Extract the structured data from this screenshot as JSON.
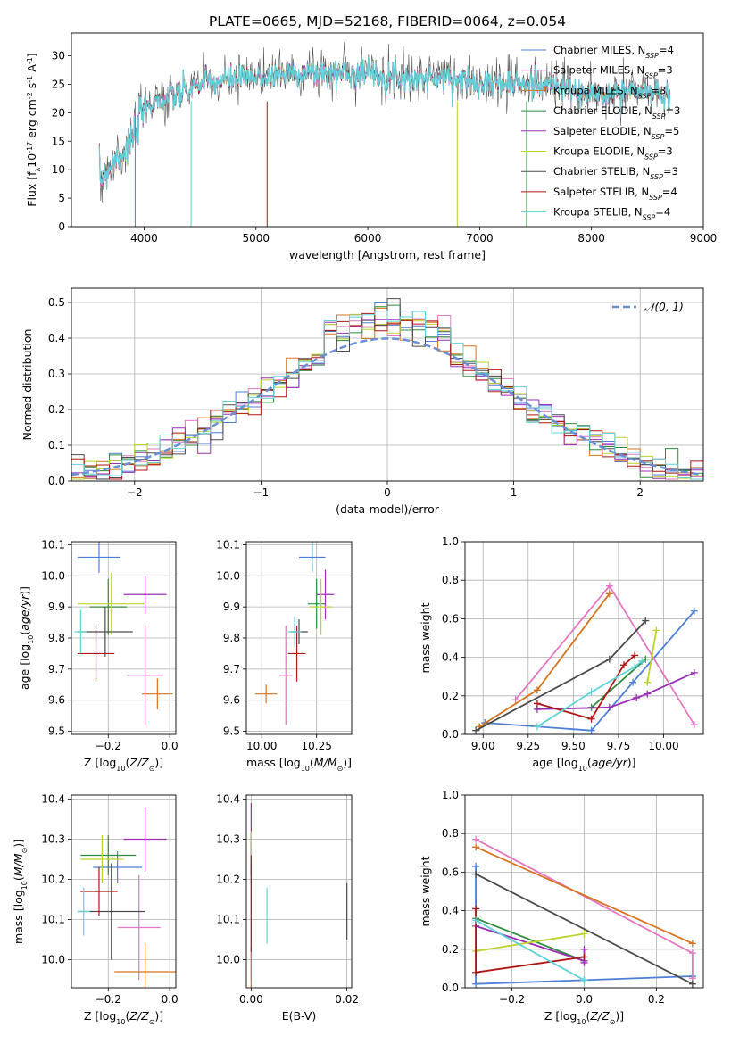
{
  "figure_title": "PLATE=0665, MJD=52168, FIBERID=0064, z=0.054",
  "models": [
    {
      "name": "Chabrier MILES, N$_{SSP}$=4",
      "color": "#4d7fd8"
    },
    {
      "name": "Salpeter MILES, N$_{SSP}$=3",
      "color": "#e377c2"
    },
    {
      "name": "Kroupa MILES, N$_{SSP}$=3",
      "color": "#d6731f"
    },
    {
      "name": "Chabrier ELODIE, N$_{SSP}$=3",
      "color": "#2e8b3e"
    },
    {
      "name": "Salpeter ELODIE, N$_{SSP}$=5",
      "color": "#9b2fb5"
    },
    {
      "name": "Kroupa ELODIE, N$_{SSP}$=3",
      "color": "#bcd22a"
    },
    {
      "name": "Chabrier STELIB, N$_{SSP}$=3",
      "color": "#4a4a4a"
    },
    {
      "name": "Salpeter STELIB, N$_{SSP}$=4",
      "color": "#b01515"
    },
    {
      "name": "Kroupa STELIB, N$_{SSP}$=4",
      "color": "#5fd3d8"
    }
  ],
  "legend_labels": [
    {
      "pre": "Chabrier MILES, N",
      "sub": "SSP",
      "post": "=4"
    },
    {
      "pre": "Salpeter MILES, N",
      "sub": "SSP",
      "post": "=3"
    },
    {
      "pre": "Kroupa MILES, N",
      "sub": "SSP",
      "post": "=3"
    },
    {
      "pre": "Chabrier ELODIE, N",
      "sub": "SSP",
      "post": "=3"
    },
    {
      "pre": "Salpeter ELODIE, N",
      "sub": "SSP",
      "post": "=5"
    },
    {
      "pre": "Kroupa ELODIE, N",
      "sub": "SSP",
      "post": "=3"
    },
    {
      "pre": "Chabrier STELIB, N",
      "sub": "SSP",
      "post": "=3"
    },
    {
      "pre": "Salpeter STELIB, N",
      "sub": "SSP",
      "post": "=4"
    },
    {
      "pre": "Kroupa STELIB, N",
      "sub": "SSP",
      "post": "=4"
    }
  ],
  "chart_data": [
    {
      "id": "spectrum",
      "type": "line",
      "title": "PLATE=0665, MJD=52168, FIBERID=0064, z=0.054",
      "xlabel": "wavelength [Angstrom, rest frame]",
      "ylabel": "Flux [f$_\\lambda$10$^{-17}$ erg cm$^{-2}$ s$^{-1}$ A$^{-1}$]",
      "xlim": [
        3350,
        9000
      ],
      "ylim": [
        0,
        34
      ],
      "xticks": [
        4000,
        5000,
        6000,
        7000,
        8000,
        9000
      ],
      "yticks": [
        0,
        5,
        10,
        15,
        20,
        25,
        30
      ],
      "legend": "upper right",
      "continuum": [
        [
          3600,
          8
        ],
        [
          3700,
          11
        ],
        [
          3800,
          13
        ],
        [
          3900,
          15
        ],
        [
          4000,
          21
        ],
        [
          4100,
          22
        ],
        [
          4300,
          23
        ],
        [
          4500,
          25
        ],
        [
          4800,
          26
        ],
        [
          5000,
          26
        ],
        [
          5300,
          27
        ],
        [
          5600,
          27
        ],
        [
          6000,
          27
        ],
        [
          6400,
          26
        ],
        [
          6800,
          26
        ],
        [
          7200,
          25
        ],
        [
          7600,
          25
        ],
        [
          8000,
          23
        ],
        [
          8400,
          24
        ],
        [
          8700,
          23
        ]
      ]
    },
    {
      "id": "residuals",
      "type": "histogram",
      "xlabel": "(data-model)/error",
      "ylabel": "Normed distribution",
      "xlim": [
        -2.5,
        2.5
      ],
      "ylim": [
        0,
        0.54
      ],
      "xticks": [
        -2,
        -1,
        0,
        1,
        2
      ],
      "yticks": [
        0.0,
        0.1,
        0.2,
        0.3,
        0.4,
        0.5
      ],
      "reference": {
        "label": "$\\mathcal{N}(0,1)$",
        "mean": 0,
        "sigma": 1,
        "color": "#6a8fd6"
      },
      "legend": "upper right"
    },
    {
      "id": "Z-age",
      "type": "scatter",
      "xlabel": "Z [log$_{10}$($Z/Z_\\odot$)]",
      "ylabel": "age  [log$_{10}$($age/yr$)]",
      "xlim": [
        -0.32,
        0.02
      ],
      "ylim": [
        9.49,
        10.11
      ],
      "xticks": [
        -0.2,
        0.0
      ],
      "yticks": [
        9.5,
        9.6,
        9.7,
        9.8,
        9.9,
        10.0,
        10.1
      ],
      "points": [
        {
          "x": -0.23,
          "y": 10.06,
          "xerr": 0.07,
          "yerr": 0.05,
          "c": 0
        },
        {
          "x": -0.08,
          "y": 9.68,
          "xerr": 0.06,
          "yerr": 0.16,
          "c": 1
        },
        {
          "x": -0.04,
          "y": 9.62,
          "xerr": 0.05,
          "yerr": 0.05,
          "c": 2
        },
        {
          "x": -0.2,
          "y": 9.9,
          "xerr": 0.06,
          "yerr": 0.09,
          "c": 3
        },
        {
          "x": -0.08,
          "y": 9.94,
          "xerr": 0.07,
          "yerr": 0.06,
          "c": 4
        },
        {
          "x": -0.19,
          "y": 9.91,
          "xerr": 0.11,
          "yerr": 0.1,
          "c": 5
        },
        {
          "x": -0.21,
          "y": 9.82,
          "xerr": 0.09,
          "yerr": 0.08,
          "c": 6
        },
        {
          "x": -0.24,
          "y": 9.75,
          "xerr": 0.06,
          "yerr": 0.09,
          "c": 7
        },
        {
          "x": -0.29,
          "y": 9.82,
          "xerr": 0.02,
          "yerr": 0.07,
          "c": 8
        }
      ]
    },
    {
      "id": "mass-age",
      "type": "scatter",
      "xlabel": "mass [log$_{10}$($M/M_\\odot$)]",
      "ylabel": "",
      "xlim": [
        9.93,
        10.41
      ],
      "ylim": [
        9.49,
        10.11
      ],
      "xticks": [
        10.0,
        10.25
      ],
      "yticks": [
        9.5,
        9.6,
        9.7,
        9.8,
        9.9,
        10.0,
        10.1
      ],
      "points": [
        {
          "x": 10.23,
          "y": 10.06,
          "xerr": 0.06,
          "yerr": 0.05,
          "c": 0
        },
        {
          "x": 10.11,
          "y": 9.68,
          "xerr": 0.03,
          "yerr": 0.16,
          "c": 1
        },
        {
          "x": 10.02,
          "y": 9.62,
          "xerr": 0.05,
          "yerr": 0.03,
          "c": 2
        },
        {
          "x": 10.25,
          "y": 9.91,
          "xerr": 0.04,
          "yerr": 0.08,
          "c": 3
        },
        {
          "x": 10.29,
          "y": 9.94,
          "xerr": 0.04,
          "yerr": 0.08,
          "c": 4
        },
        {
          "x": 10.27,
          "y": 9.9,
          "xerr": 0.05,
          "yerr": 0.09,
          "c": 5
        },
        {
          "x": 10.17,
          "y": 9.82,
          "xerr": 0.04,
          "yerr": 0.04,
          "c": 6
        },
        {
          "x": 10.16,
          "y": 9.75,
          "xerr": 0.04,
          "yerr": 0.09,
          "c": 7
        },
        {
          "x": 10.15,
          "y": 9.82,
          "xerr": 0.03,
          "yerr": 0.05,
          "c": 8
        }
      ]
    },
    {
      "id": "age-weight",
      "type": "line",
      "xlabel": "age  [log$_{10}$($age/yr$)]",
      "ylabel": "mass weight",
      "xlim": [
        8.9,
        10.22
      ],
      "ylim": [
        0,
        1
      ],
      "xticks": [
        9.0,
        9.25,
        9.5,
        9.75,
        10.0
      ],
      "yticks": [
        0.0,
        0.2,
        0.4,
        0.6,
        0.8,
        1.0
      ],
      "series": [
        {
          "c": 0,
          "x": [
            9.01,
            9.6,
            9.83,
            10.17
          ],
          "y": [
            0.06,
            0.02,
            0.27,
            0.64
          ]
        },
        {
          "c": 1,
          "x": [
            9.18,
            9.7,
            10.17
          ],
          "y": [
            0.18,
            0.77,
            0.05
          ]
        },
        {
          "c": 2,
          "x": [
            8.98,
            9.3,
            9.7
          ],
          "y": [
            0.04,
            0.23,
            0.73
          ]
        },
        {
          "c": 3,
          "x": [
            9.6,
            9.9
          ],
          "y": [
            0.14,
            0.39
          ]
        },
        {
          "c": 4,
          "x": [
            9.3,
            9.7,
            9.85,
            9.91,
            10.17
          ],
          "y": [
            0.13,
            0.14,
            0.19,
            0.21,
            0.32
          ]
        },
        {
          "c": 5,
          "x": [
            9.91,
            9.96
          ],
          "y": [
            0.27,
            0.54
          ]
        },
        {
          "c": 6,
          "x": [
            8.96,
            9.7,
            9.9
          ],
          "y": [
            0.02,
            0.39,
            0.59
          ]
        },
        {
          "c": 7,
          "x": [
            9.3,
            9.6,
            9.78,
            9.84
          ],
          "y": [
            0.16,
            0.08,
            0.36,
            0.41
          ]
        },
        {
          "c": 8,
          "x": [
            9.3,
            9.6,
            9.84,
            9.88
          ],
          "y": [
            0.04,
            0.22,
            0.35,
            0.38
          ]
        }
      ]
    },
    {
      "id": "Z-mass",
      "type": "scatter",
      "xlabel": "Z [log$_{10}$($Z/Z_\\odot$)]",
      "ylabel": "mass [log$_{10}$($M/M_\\odot$)]",
      "xlim": [
        -0.32,
        0.02
      ],
      "ylim": [
        9.93,
        10.41
      ],
      "xticks": [
        -0.2,
        0.0
      ],
      "yticks": [
        10.0,
        10.1,
        10.2,
        10.3,
        10.4
      ],
      "points": [
        {
          "x": -0.17,
          "y": 10.23,
          "xerr": 0.08,
          "yerr": 0.04,
          "c": 0
        },
        {
          "x": -0.1,
          "y": 10.08,
          "xerr": 0.07,
          "yerr": 0.13,
          "c": 1
        },
        {
          "x": -0.08,
          "y": 9.97,
          "xerr": 0.1,
          "yerr": 0.07,
          "c": 2
        },
        {
          "x": -0.2,
          "y": 10.26,
          "xerr": 0.09,
          "yerr": 0.05,
          "c": 3
        },
        {
          "x": -0.08,
          "y": 10.3,
          "xerr": 0.07,
          "yerr": 0.08,
          "c": 4
        },
        {
          "x": -0.22,
          "y": 10.25,
          "xerr": 0.07,
          "yerr": 0.06,
          "c": 5
        },
        {
          "x": -0.19,
          "y": 10.12,
          "xerr": 0.11,
          "yerr": 0.12,
          "c": 6
        },
        {
          "x": -0.23,
          "y": 10.17,
          "xerr": 0.06,
          "yerr": 0.06,
          "c": 7
        },
        {
          "x": -0.28,
          "y": 10.12,
          "xerr": 0.02,
          "yerr": 0.06,
          "c": 8
        }
      ]
    },
    {
      "id": "ebv-mass",
      "type": "scatter",
      "xlabel": "E(B-V)",
      "ylabel": "",
      "xlim": [
        -0.001,
        0.021
      ],
      "ylim": [
        9.93,
        10.41
      ],
      "xticks": [
        0.0,
        0.02
      ],
      "yticks": [
        10.0,
        10.1,
        10.2,
        10.3,
        10.4
      ],
      "points": [
        {
          "x": 0.0,
          "y": 10.23,
          "xerr": 0,
          "yerr": 0.04,
          "c": 0
        },
        {
          "x": 0.0,
          "y": 10.08,
          "xerr": 0,
          "yerr": 0.13,
          "c": 1
        },
        {
          "x": 0.0,
          "y": 9.97,
          "xerr": 0,
          "yerr": 0.06,
          "c": 2
        },
        {
          "x": 0.0,
          "y": 10.26,
          "xerr": 0,
          "yerr": 0.05,
          "c": 3
        },
        {
          "x": 0.0,
          "y": 10.3,
          "xerr": 0,
          "yerr": 0.09,
          "c": 4
        },
        {
          "x": 0.0,
          "y": 10.28,
          "xerr": 0,
          "yerr": 0.04,
          "c": 5
        },
        {
          "x": 0.02,
          "y": 10.12,
          "xerr": 0,
          "yerr": 0.07,
          "c": 6
        },
        {
          "x": 0.0,
          "y": 10.14,
          "xerr": 0,
          "yerr": 0.12,
          "c": 7
        },
        {
          "x": 0.0033,
          "y": 10.11,
          "xerr": 0,
          "yerr": 0.07,
          "c": 8
        }
      ]
    },
    {
      "id": "Z-weight",
      "type": "line",
      "xlabel": "Z [log$_{10}$($Z/Z_\\odot$)]",
      "ylabel": "mass weight",
      "xlim": [
        -0.33,
        0.33
      ],
      "ylim": [
        0,
        1
      ],
      "xticks": [
        -0.2,
        0.0,
        0.2
      ],
      "yticks": [
        0.0,
        0.2,
        0.4,
        0.6,
        0.8,
        1.0
      ],
      "series": [
        {
          "c": 0,
          "x": [
            -0.3,
            -0.3,
            0.0,
            0.3
          ],
          "y": [
            0.63,
            0.02,
            0.04,
            0.06
          ]
        },
        {
          "c": 1,
          "x": [
            -0.3,
            0.3,
            0.3
          ],
          "y": [
            0.77,
            0.18,
            0.05
          ]
        },
        {
          "c": 2,
          "x": [
            -0.3,
            0.3
          ],
          "y": [
            0.73,
            0.23
          ]
        },
        {
          "c": 3,
          "x": [
            -0.3,
            0.0
          ],
          "y": [
            0.36,
            0.14
          ]
        },
        {
          "c": 4,
          "x": [
            -0.3,
            0.0,
            0.0,
            0.0
          ],
          "y": [
            0.32,
            0.14,
            0.2,
            0.13
          ]
        },
        {
          "c": 5,
          "x": [
            -0.3,
            0.0
          ],
          "y": [
            0.19,
            0.28
          ]
        },
        {
          "c": 6,
          "x": [
            -0.3,
            0.3
          ],
          "y": [
            0.59,
            0.02
          ]
        },
        {
          "c": 7,
          "x": [
            -0.3,
            -0.3,
            0.0
          ],
          "y": [
            0.41,
            0.08,
            0.16
          ]
        },
        {
          "c": 8,
          "x": [
            -0.3,
            0.0,
            0.0
          ],
          "y": [
            0.35,
            0.04,
            0.04
          ]
        }
      ]
    }
  ]
}
